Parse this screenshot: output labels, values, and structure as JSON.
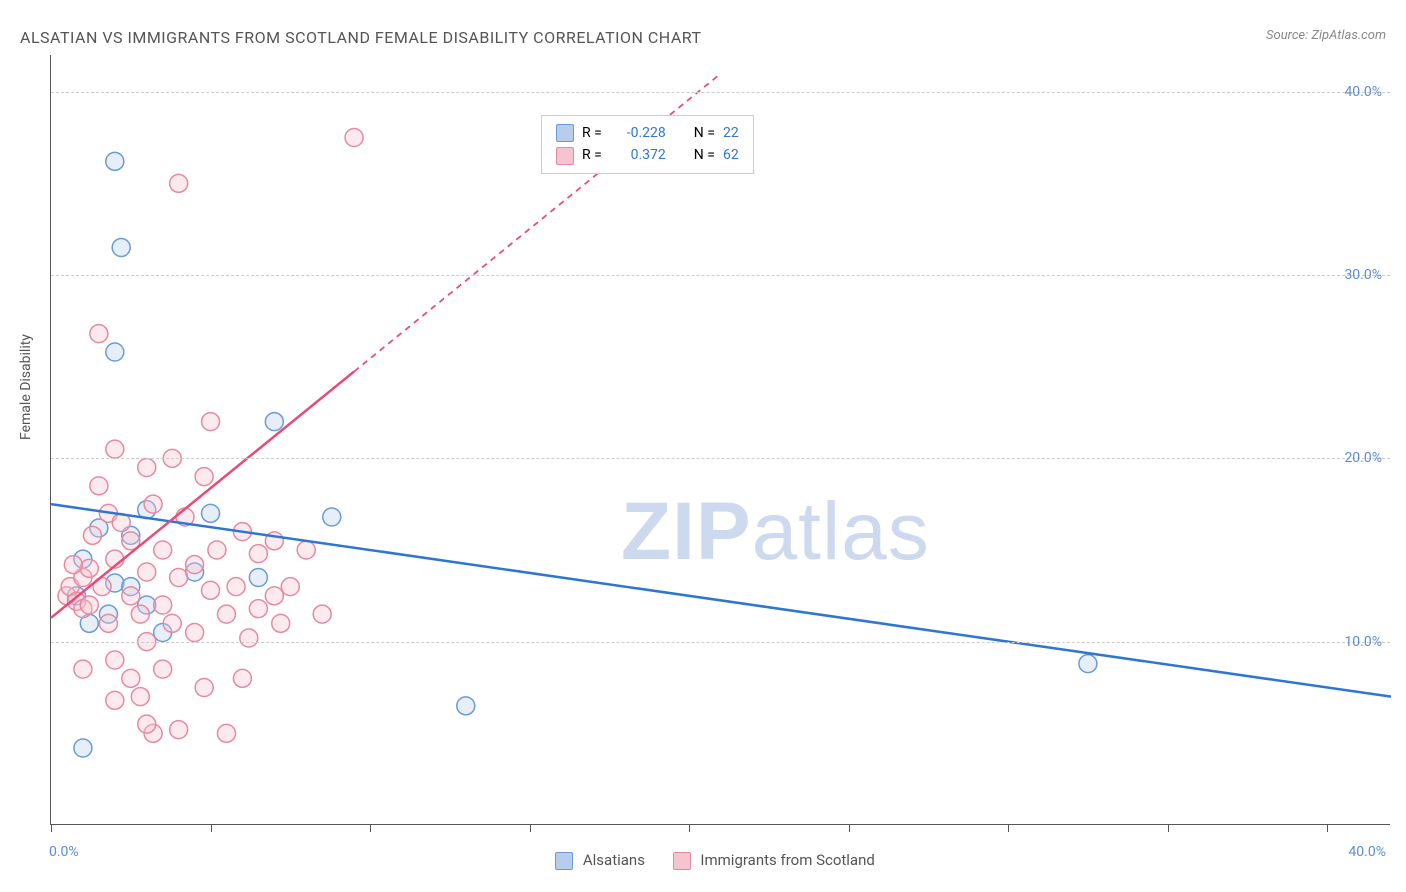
{
  "title": "ALSATIAN VS IMMIGRANTS FROM SCOTLAND FEMALE DISABILITY CORRELATION CHART",
  "source_prefix": "Source: ",
  "source_name": "ZipAtlas.com",
  "y_axis_label": "Female Disability",
  "watermark_a": "ZIP",
  "watermark_b": "atlas",
  "chart": {
    "type": "scatter",
    "xlim": [
      0,
      42
    ],
    "ylim": [
      0,
      42
    ],
    "y_gridlines": [
      10,
      20,
      30,
      40
    ],
    "y_tick_labels": [
      "10.0%",
      "20.0%",
      "30.0%",
      "40.0%"
    ],
    "x_ticks": [
      0,
      5,
      10,
      15,
      20,
      25,
      30,
      35,
      40
    ],
    "x_tick_labels": {
      "left": "0.0%",
      "right": "40.0%"
    },
    "background_color": "#ffffff",
    "grid_color": "#cccccc",
    "axis_color": "#555555",
    "tick_label_color": "#5b8dd6",
    "marker_radius": 9,
    "marker_opacity": 0.35,
    "trend_line_width": 2.5,
    "trend_dash_pattern": "6,5"
  },
  "legend_top": {
    "stat_label_r": "R =",
    "stat_label_n": "N =",
    "rows": [
      {
        "r": "-0.228",
        "n": "22"
      },
      {
        "r": "0.372",
        "n": "62"
      }
    ]
  },
  "series": [
    {
      "key": "alsatians",
      "label": "Alsatians",
      "color_fill": "#b7cdeb",
      "color_stroke": "#6a9bd8",
      "trend_color": "#2f76d2",
      "trend": {
        "x1": 0,
        "y1": 17.5,
        "x2": 42,
        "y2": 7.0,
        "solid_until_x": 42
      },
      "points": [
        [
          1.0,
          4.2
        ],
        [
          2.0,
          36.2
        ],
        [
          2.2,
          31.5
        ],
        [
          2.0,
          25.8
        ],
        [
          1.5,
          16.2
        ],
        [
          2.5,
          15.8
        ],
        [
          5.0,
          17.0
        ],
        [
          3.0,
          12.0
        ],
        [
          4.5,
          13.8
        ],
        [
          1.2,
          11.0
        ],
        [
          6.5,
          13.5
        ],
        [
          7.0,
          22.0
        ],
        [
          8.8,
          16.8
        ],
        [
          3.5,
          10.5
        ],
        [
          2.0,
          13.2
        ],
        [
          1.0,
          14.5
        ],
        [
          13.0,
          6.5
        ],
        [
          1.8,
          11.5
        ],
        [
          3.0,
          17.2
        ],
        [
          0.8,
          12.5
        ],
        [
          32.5,
          8.8
        ],
        [
          2.5,
          13.0
        ]
      ]
    },
    {
      "key": "scotland",
      "label": "Immigrants from Scotland",
      "color_fill": "#f5c4ce",
      "color_stroke": "#e68aa0",
      "trend_color": "#e84b77",
      "trend": {
        "x1": 0,
        "y1": 11.3,
        "x2": 21,
        "y2": 41.0,
        "solid_until_x": 9.5
      },
      "points": [
        [
          0.5,
          12.5
        ],
        [
          0.6,
          13.0
        ],
        [
          0.8,
          12.2
        ],
        [
          1.0,
          11.8
        ],
        [
          1.0,
          13.5
        ],
        [
          1.2,
          12.0
        ],
        [
          1.2,
          14.0
        ],
        [
          1.5,
          26.8
        ],
        [
          1.5,
          18.5
        ],
        [
          1.6,
          13.0
        ],
        [
          1.8,
          17.0
        ],
        [
          1.8,
          11.0
        ],
        [
          2.0,
          14.5
        ],
        [
          2.0,
          20.5
        ],
        [
          2.0,
          9.0
        ],
        [
          2.2,
          16.5
        ],
        [
          2.5,
          12.5
        ],
        [
          2.5,
          15.5
        ],
        [
          2.5,
          8.0
        ],
        [
          2.8,
          11.5
        ],
        [
          2.8,
          7.0
        ],
        [
          3.0,
          19.5
        ],
        [
          3.0,
          13.8
        ],
        [
          3.0,
          10.0
        ],
        [
          3.2,
          5.0
        ],
        [
          3.2,
          17.5
        ],
        [
          3.5,
          12.0
        ],
        [
          3.5,
          15.0
        ],
        [
          3.5,
          8.5
        ],
        [
          3.8,
          20.0
        ],
        [
          3.8,
          11.0
        ],
        [
          4.0,
          35.0
        ],
        [
          4.0,
          13.5
        ],
        [
          4.0,
          5.2
        ],
        [
          4.2,
          16.8
        ],
        [
          4.5,
          10.5
        ],
        [
          4.5,
          14.2
        ],
        [
          4.8,
          7.5
        ],
        [
          4.8,
          19.0
        ],
        [
          5.0,
          12.8
        ],
        [
          5.0,
          22.0
        ],
        [
          5.2,
          15.0
        ],
        [
          5.5,
          11.5
        ],
        [
          5.5,
          5.0
        ],
        [
          5.8,
          13.0
        ],
        [
          6.0,
          16.0
        ],
        [
          6.0,
          8.0
        ],
        [
          6.2,
          10.2
        ],
        [
          6.5,
          14.8
        ],
        [
          6.5,
          11.8
        ],
        [
          7.0,
          15.5
        ],
        [
          7.0,
          12.5
        ],
        [
          7.2,
          11.0
        ],
        [
          7.5,
          13.0
        ],
        [
          8.0,
          15.0
        ],
        [
          8.5,
          11.5
        ],
        [
          9.5,
          37.5
        ],
        [
          3.0,
          5.5
        ],
        [
          2.0,
          6.8
        ],
        [
          1.0,
          8.5
        ],
        [
          1.3,
          15.8
        ],
        [
          0.7,
          14.2
        ]
      ]
    }
  ]
}
